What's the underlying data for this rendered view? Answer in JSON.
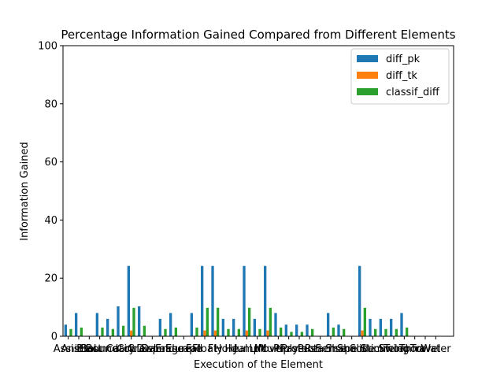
{
  "chart_data": {
    "type": "bar",
    "title": "Percentage Information Gained Compared from Different Elements",
    "xlabel": "Execution of the Element",
    "ylabel": "Information Gained",
    "ylim": [
      0,
      100
    ],
    "yticks": [
      0,
      20,
      40,
      60,
      80,
      100
    ],
    "grid": false,
    "legend_position": "top-right",
    "categories": [
      "Assist",
      "Animal",
      "Blast",
      "Bounce",
      "Boundary",
      "Catch",
      "Circle",
      "Crawl",
      "Dispel",
      "Damage",
      "Endure",
      "Escape",
      "Fall",
      "Float",
      "Fly",
      "Hold",
      "Heal",
      "Jump",
      "Lift",
      "Move",
      "Multiply",
      "Phase",
      "Protect",
      "Push",
      "Reach",
      "Sense",
      "Shape",
      "Shoot",
      "Slide",
      "Stick",
      "Summon",
      "Swing",
      "Teleport",
      "Throw",
      "Travel",
      "Water"
    ],
    "series": [
      {
        "name": "diff_pk",
        "color": "#1f77b4",
        "values": [
          4.0,
          8.0,
          0,
          8.0,
          6.0,
          10.3,
          24.2,
          10.3,
          0,
          6.0,
          8.0,
          0,
          8.0,
          24.2,
          24.2,
          6.0,
          6.0,
          24.2,
          6.0,
          24.2,
          8.0,
          4.0,
          4.0,
          4.0,
          0,
          8.0,
          4.0,
          0,
          24.2,
          6.0,
          6.0,
          6.0,
          8.0,
          0,
          0,
          0
        ]
      },
      {
        "name": "diff_tk",
        "color": "#ff7f0e",
        "values": [
          0,
          0,
          0,
          0,
          0,
          0,
          2.0,
          0,
          0,
          0,
          0,
          0,
          0,
          2.0,
          2.0,
          0,
          0,
          2.0,
          0,
          2.0,
          0,
          0,
          0,
          0,
          0,
          0,
          0,
          0,
          2.0,
          0,
          0,
          0,
          0,
          0,
          0,
          0
        ]
      },
      {
        "name": "classif_diff",
        "color": "#2ca02c",
        "values": [
          2.5,
          3.0,
          0,
          3.0,
          2.5,
          3.6,
          9.8,
          3.6,
          0,
          2.5,
          3.0,
          0,
          3.0,
          9.8,
          9.8,
          2.5,
          2.5,
          9.8,
          2.5,
          9.8,
          3.0,
          1.5,
          1.5,
          2.5,
          0,
          3.0,
          2.5,
          0,
          9.8,
          2.5,
          2.5,
          2.5,
          3.0,
          0,
          0,
          0
        ]
      }
    ]
  }
}
